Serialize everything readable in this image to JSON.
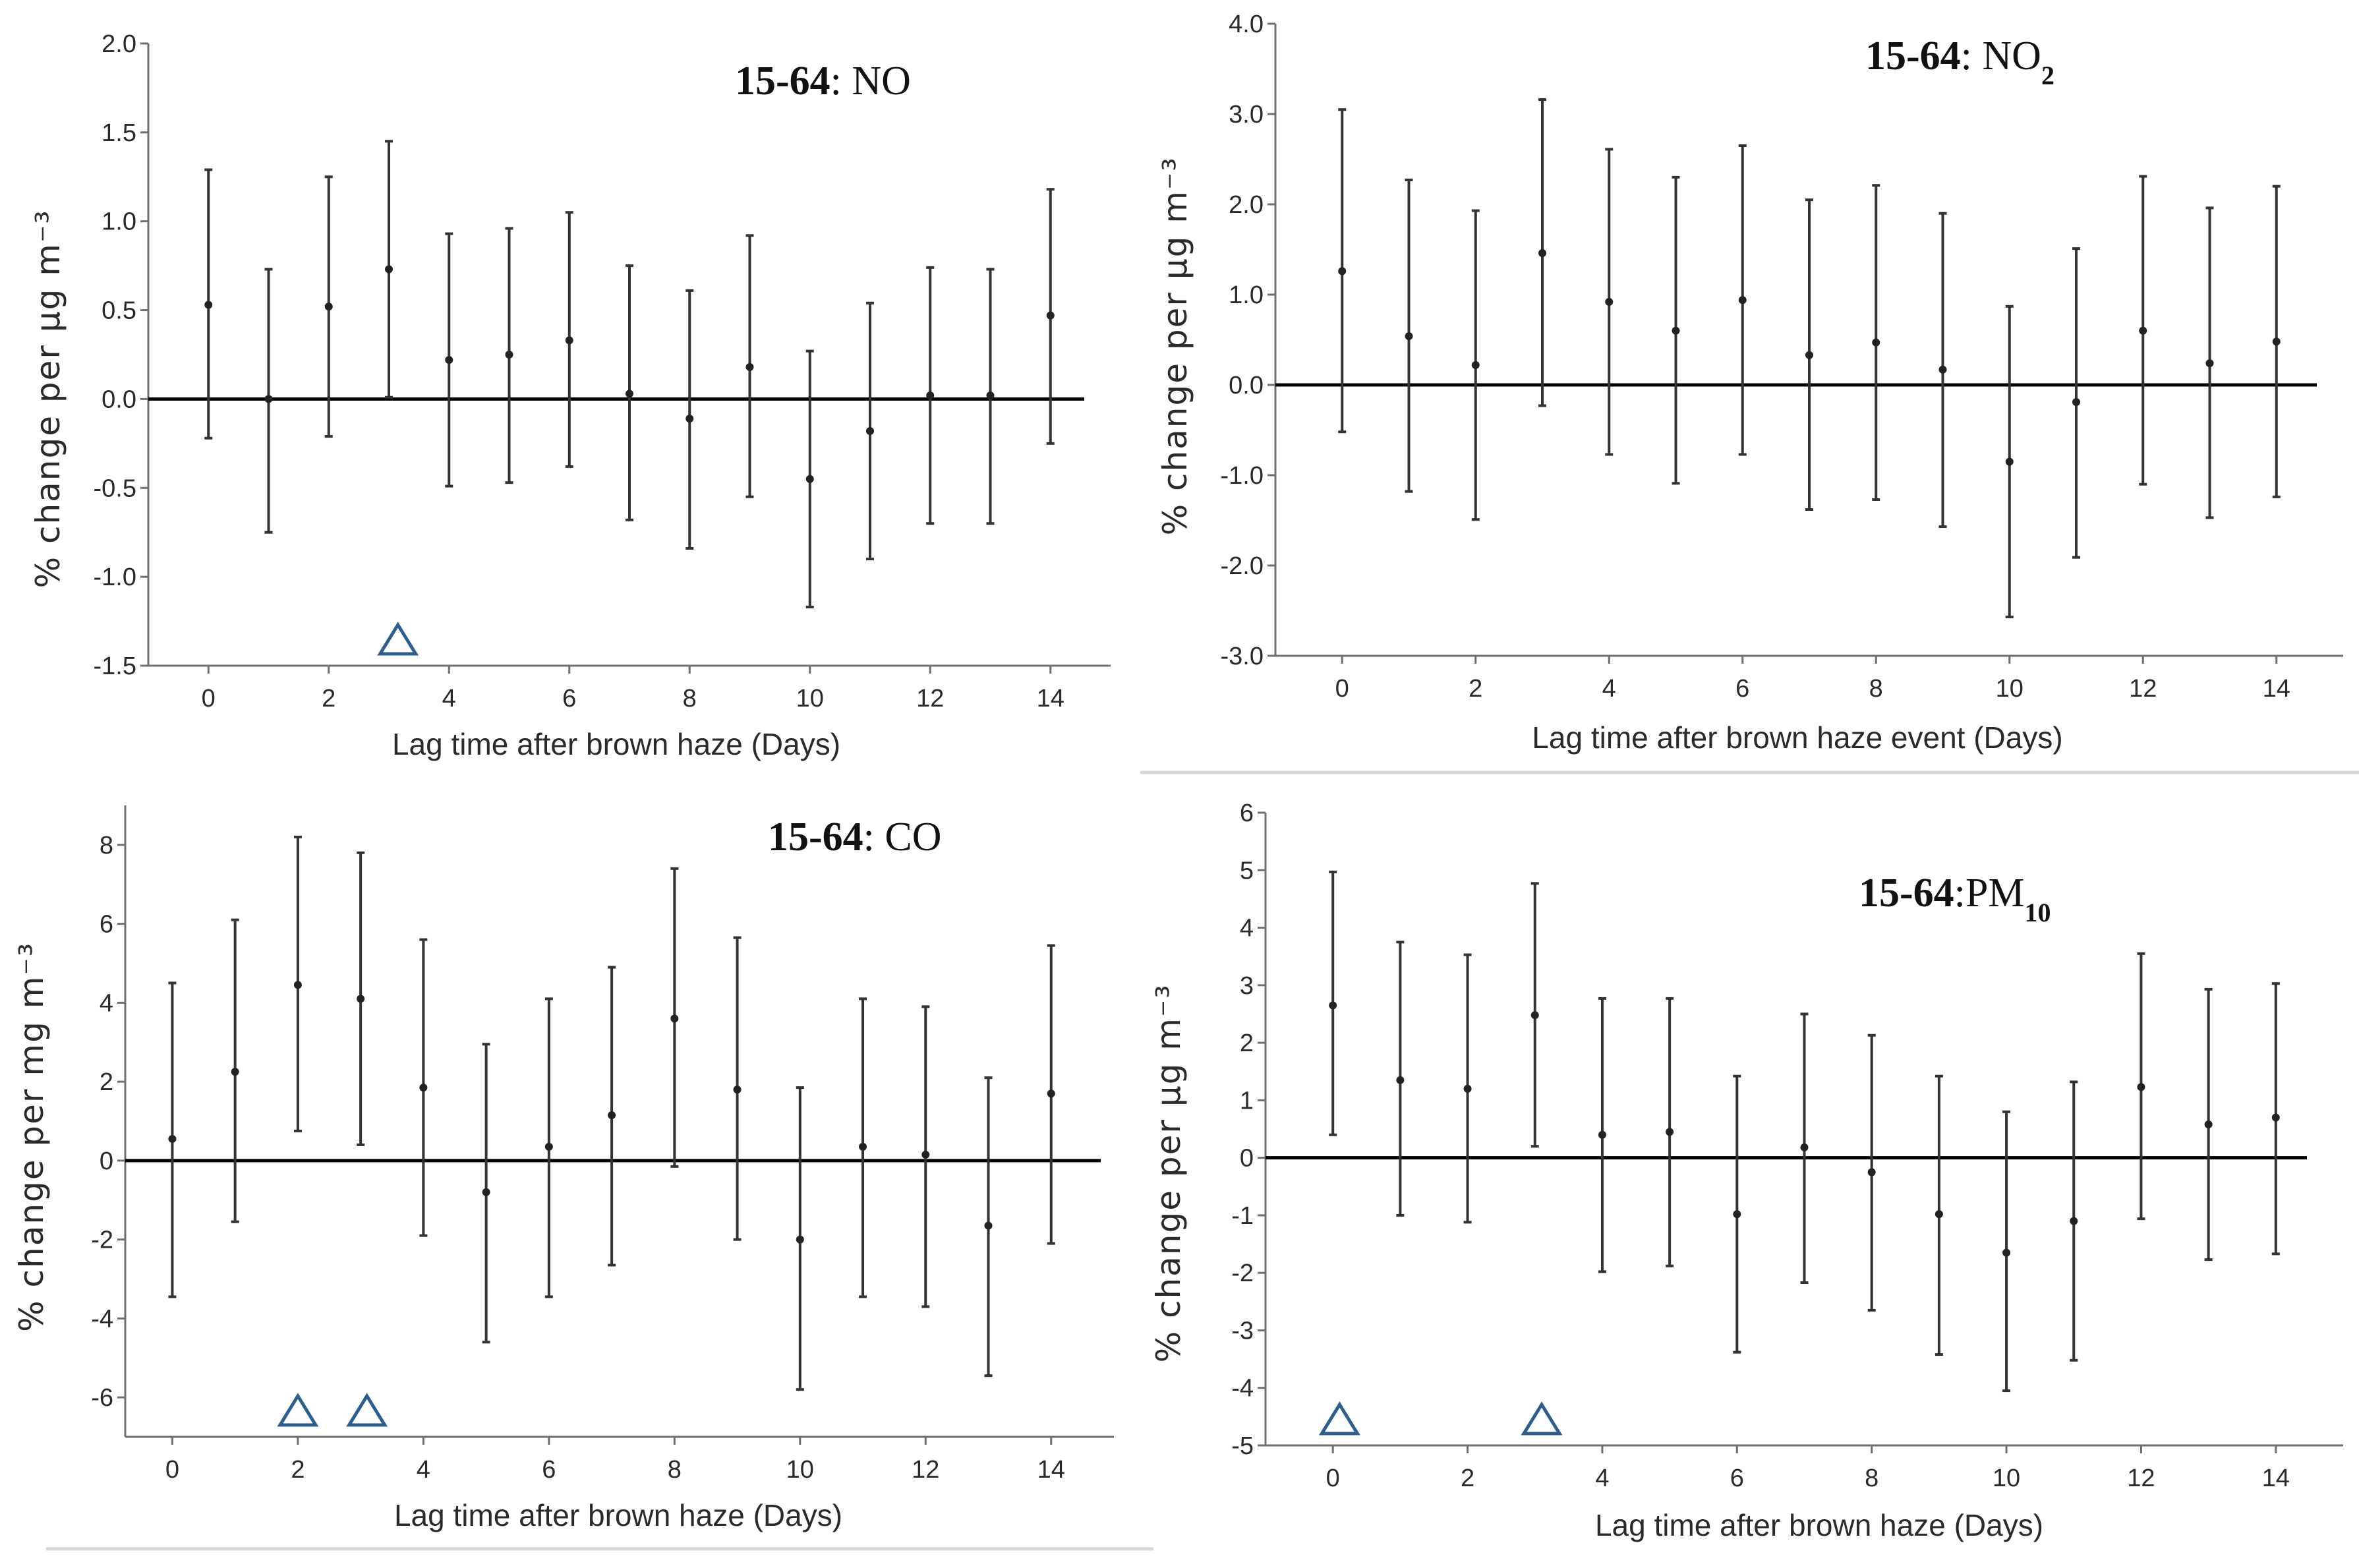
{
  "chart_data": [
    {
      "type": "errorbar",
      "title": "15-64: NO",
      "title_prefix": "15-64",
      "title_pollutant": "NO",
      "xlabel": "Lag time after brown haze (Days)",
      "ylabel": "% change per µg m⁻³",
      "xlim": [
        -1,
        15
      ],
      "xticks": [
        0,
        2,
        4,
        6,
        8,
        10,
        12,
        14
      ],
      "ylim": [
        -1.5,
        2.0
      ],
      "yticks": [
        -1.5,
        -1.0,
        -0.5,
        0.0,
        0.5,
        1.0,
        1.5,
        2.0
      ],
      "ytick_labels": [
        "-1.5",
        "-1.0",
        "-0.5",
        "0.0",
        "0.5",
        "1.0",
        "1.5",
        "2.0"
      ],
      "x": [
        0,
        1,
        2,
        3,
        4,
        5,
        6,
        7,
        8,
        9,
        10,
        11,
        12,
        13,
        14
      ],
      "estimate": [
        0.53,
        0.0,
        0.52,
        0.73,
        0.22,
        0.25,
        0.33,
        0.03,
        -0.11,
        0.18,
        -0.45,
        -0.18,
        0.02,
        0.02,
        0.47
      ],
      "lower": [
        -0.22,
        -0.75,
        -0.21,
        0.01,
        -0.49,
        -0.47,
        -0.38,
        -0.68,
        -0.84,
        -0.55,
        -1.17,
        -0.9,
        -0.7,
        -0.7,
        -0.25
      ],
      "upper": [
        1.29,
        0.73,
        1.25,
        1.45,
        0.93,
        0.96,
        1.05,
        0.75,
        0.61,
        0.92,
        0.27,
        0.54,
        0.74,
        0.73,
        1.18
      ],
      "significant_markers": [
        3.15
      ]
    },
    {
      "type": "errorbar",
      "title": "15-64: NO2",
      "title_prefix": "15-64",
      "title_pollutant": "NO",
      "title_subscript": "2",
      "xlabel": "Lag time after brown haze event (Days)",
      "ylabel": "% change per µg m⁻³",
      "xlim": [
        -1,
        15
      ],
      "xticks": [
        0,
        2,
        4,
        6,
        8,
        10,
        12,
        14
      ],
      "ylim": [
        -3.0,
        4.0
      ],
      "yticks": [
        -3.0,
        -2.0,
        -1.0,
        0.0,
        1.0,
        2.0,
        3.0,
        4.0
      ],
      "ytick_labels": [
        "-3.0",
        "-2.0",
        "-1.0",
        "0.0",
        "1.0",
        "2.0",
        "3.0",
        "4.0"
      ],
      "x": [
        0,
        1,
        2,
        3,
        4,
        5,
        6,
        7,
        8,
        9,
        10,
        11,
        12,
        13,
        14
      ],
      "estimate": [
        1.26,
        0.54,
        0.22,
        1.46,
        0.92,
        0.6,
        0.94,
        0.33,
        0.47,
        0.17,
        -0.85,
        -0.19,
        0.6,
        0.24,
        0.48
      ],
      "lower": [
        -0.52,
        -1.18,
        -1.49,
        -0.23,
        -0.77,
        -1.09,
        -0.77,
        -1.38,
        -1.27,
        -1.57,
        -2.57,
        -1.91,
        -1.1,
        -1.47,
        -1.24
      ],
      "upper": [
        3.05,
        2.27,
        1.93,
        3.16,
        2.61,
        2.3,
        2.65,
        2.05,
        2.21,
        1.9,
        0.87,
        1.51,
        2.31,
        1.96,
        2.2
      ],
      "significant_markers": []
    },
    {
      "type": "errorbar",
      "title": "15-64: CO",
      "title_prefix": "15-64",
      "title_pollutant": "CO",
      "xlabel": "Lag time after brown haze (Days)",
      "ylabel": "% change per mg m⁻³",
      "xlim": [
        -0.75,
        15
      ],
      "xticks": [
        0,
        2,
        4,
        6,
        8,
        10,
        12,
        14
      ],
      "ylim": [
        -7,
        9
      ],
      "yticks": [
        -6,
        -4,
        -2,
        0,
        2,
        4,
        6,
        8
      ],
      "ytick_labels": [
        "-6",
        "-4",
        "-2",
        "0",
        "2",
        "4",
        "6",
        "8"
      ],
      "x": [
        0,
        1,
        2,
        3,
        4,
        5,
        6,
        7,
        8,
        9,
        10,
        11,
        12,
        13,
        14
      ],
      "estimate": [
        0.55,
        2.25,
        4.45,
        4.1,
        1.85,
        -0.8,
        0.35,
        1.15,
        3.6,
        1.8,
        -2.0,
        0.35,
        0.15,
        -1.65,
        1.7
      ],
      "lower": [
        -3.45,
        -1.55,
        0.75,
        0.4,
        -1.9,
        -4.6,
        -3.45,
        -2.65,
        -0.15,
        -2.0,
        -5.8,
        -3.45,
        -3.7,
        -5.45,
        -2.1
      ],
      "upper": [
        4.5,
        6.1,
        8.2,
        7.8,
        5.6,
        2.95,
        4.1,
        4.9,
        7.4,
        5.65,
        1.85,
        4.1,
        3.9,
        2.1,
        5.45
      ],
      "significant_markers": [
        2.0,
        3.1
      ]
    },
    {
      "type": "errorbar",
      "title": "15-64: PM10",
      "title_prefix": "15-64",
      "title_pollutant": "PM",
      "title_subscript": "10",
      "xlabel": "Lag time after brown haze (Days)",
      "ylabel": "% change per µg m⁻³",
      "xlim": [
        -1,
        15
      ],
      "xticks": [
        0,
        2,
        4,
        6,
        8,
        10,
        12,
        14
      ],
      "ylim": [
        -5,
        6
      ],
      "yticks": [
        -5,
        -4,
        -3,
        -2,
        -1,
        0,
        1,
        2,
        3,
        4,
        5,
        6
      ],
      "ytick_labels": [
        "-5",
        "-4",
        "-3",
        "-2",
        "-1",
        "0",
        "1",
        "2",
        "3",
        "4",
        "5",
        "6"
      ],
      "x": [
        0,
        1,
        2,
        3,
        4,
        5,
        6,
        7,
        8,
        9,
        10,
        11,
        12,
        13,
        14
      ],
      "estimate": [
        2.65,
        1.35,
        1.2,
        2.48,
        0.4,
        0.45,
        -0.98,
        0.18,
        -0.25,
        -0.98,
        -1.65,
        -1.1,
        1.23,
        0.58,
        0.7
      ],
      "lower": [
        0.4,
        -1.0,
        -1.12,
        0.2,
        -1.98,
        -1.88,
        -3.38,
        -2.17,
        -2.65,
        -3.42,
        -4.05,
        -3.52,
        -1.06,
        -1.77,
        -1.67
      ],
      "upper": [
        4.97,
        3.75,
        3.53,
        4.77,
        2.77,
        2.77,
        1.42,
        2.5,
        2.13,
        1.42,
        0.8,
        1.32,
        3.55,
        2.93,
        3.03
      ],
      "significant_markers": [
        0.1,
        3.1
      ]
    }
  ]
}
